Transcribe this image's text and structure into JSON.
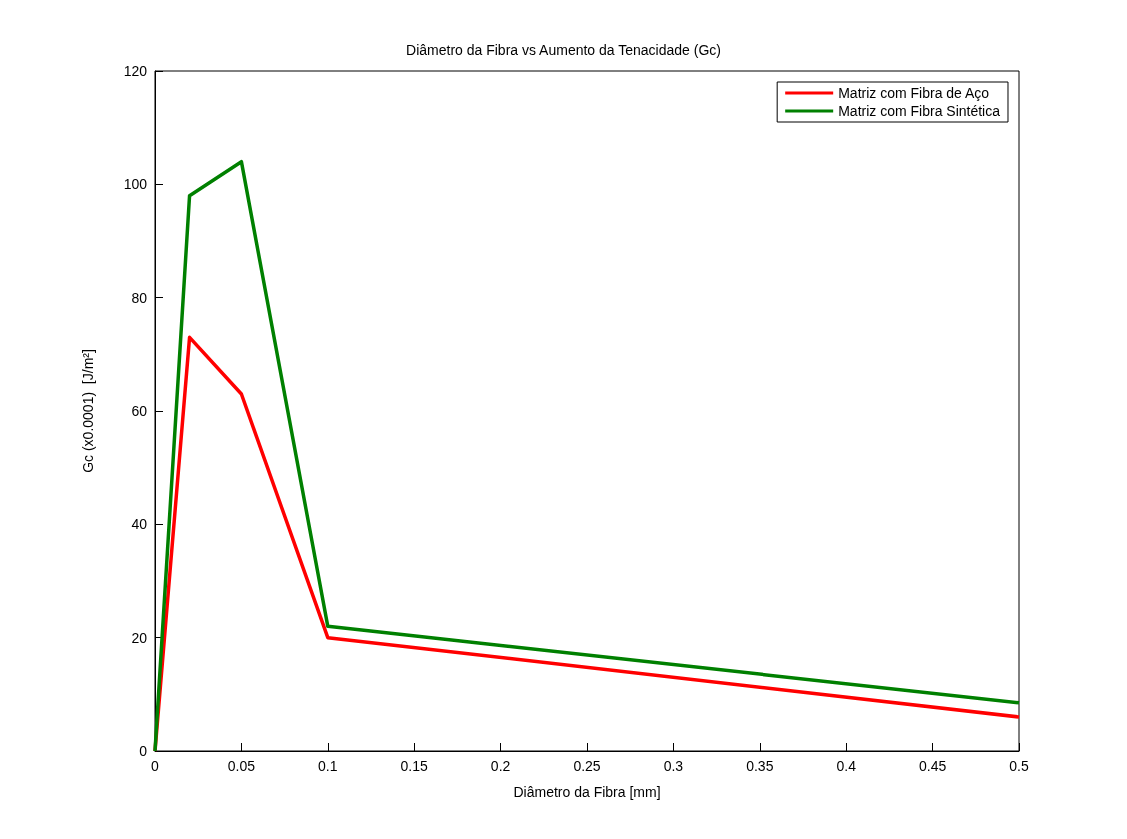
{
  "chart_data": {
    "type": "line",
    "title": "Diâmetro da Fibra vs Aumento da Tenacidade (Gc)",
    "xlabel": "Diâmetro da Fibra [mm]",
    "ylabel": "Gc (x0.0001)  [J/m²]",
    "x": [
      0,
      0.02,
      0.05,
      0.1,
      0.5
    ],
    "series": [
      {
        "name": "Matriz com Fibra de Aço",
        "color": "#ff0000",
        "values": [
          0,
          73,
          63,
          20,
          6
        ]
      },
      {
        "name": "Matriz com Fibra Sintética",
        "color": "#008000",
        "values": [
          0,
          98,
          104,
          22,
          8.5
        ]
      }
    ],
    "xlim": [
      0,
      0.5
    ],
    "xticks": [
      0,
      0.05,
      0.1,
      0.15,
      0.2,
      0.25,
      0.3,
      0.35,
      0.4,
      0.45,
      0.5
    ],
    "ylim": [
      0,
      120
    ],
    "yticks": [
      0,
      20,
      40,
      60,
      80,
      100,
      120
    ],
    "grid": false,
    "legend": "top right",
    "marker": "none",
    "line_style": "solid"
  }
}
